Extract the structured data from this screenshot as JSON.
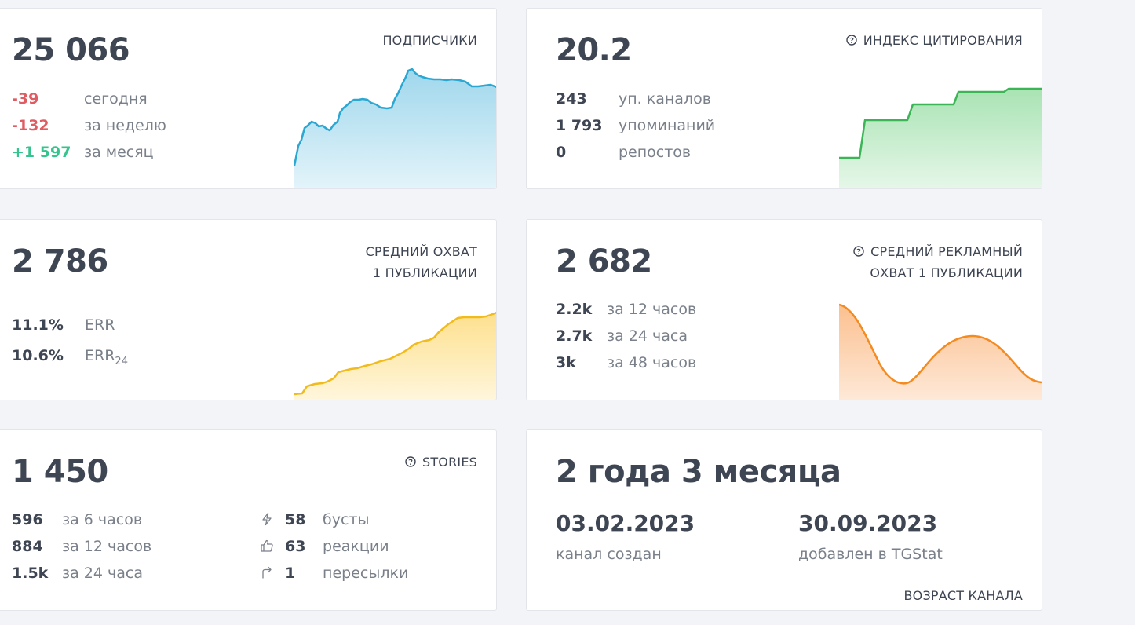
{
  "subscribers": {
    "value": "25 066",
    "title": "ПОДПИСЧИКИ",
    "rows": [
      {
        "value": "-39",
        "label": "сегодня"
      },
      {
        "value": "-132",
        "label": "за неделю"
      },
      {
        "value": "+1 597",
        "label": "за месяц"
      }
    ]
  },
  "citation": {
    "value": "20.2",
    "title": "ИНДЕКС ЦИТИРОВАНИЯ",
    "rows": [
      {
        "value": "243",
        "label": "уп. каналов"
      },
      {
        "value": "1 793",
        "label": "упоминаний"
      },
      {
        "value": "0",
        "label": "репостов"
      }
    ]
  },
  "reach": {
    "value": "2 786",
    "title_line1": "СРЕДНИЙ ОХВАТ",
    "title_line2": "1 ПУБЛИКАЦИИ",
    "rows": [
      {
        "value": "11.1%",
        "label": "ERR"
      },
      {
        "value": "10.6%",
        "label": "ERR",
        "sub": "24"
      }
    ]
  },
  "ad_reach": {
    "value": "2 682",
    "title_line1": "СРЕДНИЙ РЕКЛАМНЫЙ",
    "title_line2": "ОХВАТ 1 ПУБЛИКАЦИИ",
    "rows": [
      {
        "value": "2.2k",
        "label": "за 12 часов"
      },
      {
        "value": "2.7k",
        "label": "за 24 часа"
      },
      {
        "value": "3k",
        "label": "за 48 часов"
      }
    ]
  },
  "stories": {
    "value": "1 450",
    "title": "STORIES",
    "rows": [
      {
        "value": "596",
        "label": "за 6 часов"
      },
      {
        "value": "884",
        "label": "за 12 часов"
      },
      {
        "value": "1.5k",
        "label": "за 24 часа"
      }
    ],
    "stats": [
      {
        "icon": "lightning-icon",
        "value": "58",
        "label": "бусты"
      },
      {
        "icon": "thumbs-up-icon",
        "value": "63",
        "label": "реакции"
      },
      {
        "icon": "forward-arrow-icon",
        "value": "1",
        "label": "пересылки"
      }
    ]
  },
  "age": {
    "value": "2 года 3 месяца",
    "created_date": "03.02.2023",
    "created_label": "канал создан",
    "added_date": "30.09.2023",
    "added_label": "добавлен в TGStat",
    "title": "ВОЗРАСТ КАНАЛА"
  },
  "colors": {
    "negative": "#e05c63",
    "positive": "#36c48e",
    "subscribers_line": "#2aa7d2",
    "citation_line": "#3cb557",
    "reach_line": "#f2bb1d",
    "ad_reach_line": "#f58a1f"
  }
}
